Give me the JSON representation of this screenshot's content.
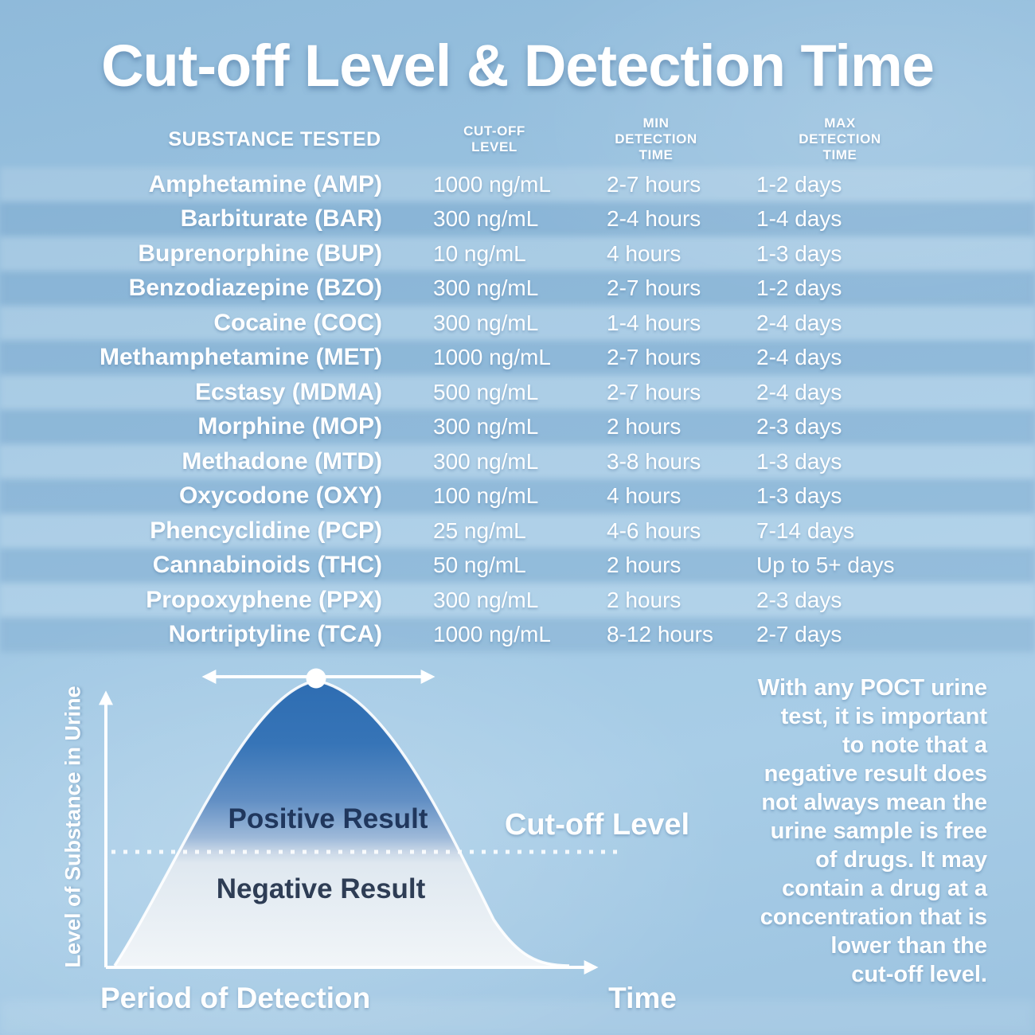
{
  "title": "Cut-off Level & Detection Time",
  "colors": {
    "background_blue": "#9dc5e2",
    "stripe_dark": "#5c8bb8",
    "curve_top_blue": "#2e6db2",
    "curve_bottom_light": "#f1f5f8",
    "text_white": "#ffffff",
    "region_label_dark": "#20375d"
  },
  "table": {
    "headers": [
      "SUBSTANCE TESTED",
      "CUT-OFF\nLEVEL",
      "MIN\nDETECTION\nTIME",
      "MAX\nDETECTION\nTIME"
    ],
    "rows": [
      {
        "substance": "Amphetamine (AMP)",
        "cutoff": "1000 ng/mL",
        "min": "2-7 hours",
        "max": "1-2 days"
      },
      {
        "substance": "Barbiturate (BAR)",
        "cutoff": "300 ng/mL",
        "min": "2-4 hours",
        "max": "1-4 days"
      },
      {
        "substance": "Buprenorphine (BUP)",
        "cutoff": "10 ng/mL",
        "min": "4 hours",
        "max": "1-3 days"
      },
      {
        "substance": "Benzodiazepine (BZO)",
        "cutoff": "300 ng/mL",
        "min": "2-7 hours",
        "max": "1-2 days"
      },
      {
        "substance": "Cocaine (COC)",
        "cutoff": "300 ng/mL",
        "min": "1-4 hours",
        "max": "2-4 days"
      },
      {
        "substance": "Methamphetamine (MET)",
        "cutoff": "1000 ng/mL",
        "min": "2-7 hours",
        "max": "2-4 days"
      },
      {
        "substance": "Ecstasy (MDMA)",
        "cutoff": "500 ng/mL",
        "min": "2-7 hours",
        "max": "2-4 days"
      },
      {
        "substance": "Morphine (MOP)",
        "cutoff": "300 ng/mL",
        "min": "2 hours",
        "max": "2-3 days"
      },
      {
        "substance": "Methadone (MTD)",
        "cutoff": "300 ng/mL",
        "min": "3-8 hours",
        "max": "1-3 days"
      },
      {
        "substance": "Oxycodone (OXY)",
        "cutoff": "100 ng/mL",
        "min": "4 hours",
        "max": "1-3 days"
      },
      {
        "substance": "Phencyclidine (PCP)",
        "cutoff": "25 ng/mL",
        "min": "4-6 hours",
        "max": "7-14 days"
      },
      {
        "substance": "Cannabinoids (THC)",
        "cutoff": "50 ng/mL",
        "min": "2 hours",
        "max": "Up to 5+ days"
      },
      {
        "substance": "Propoxyphene (PPX)",
        "cutoff": "300 ng/mL",
        "min": "2 hours",
        "max": "2-3 days"
      },
      {
        "substance": "Nortriptyline (TCA)",
        "cutoff": "1000 ng/mL",
        "min": "8-12 hours",
        "max": "2-7 days"
      }
    ]
  },
  "concept_chart": {
    "y_axis_label": "Level of Substance in Urine",
    "x_axis_label": "Period of Detection",
    "x_axis_end_label": "Time",
    "region_above_cutoff": "Positive Result",
    "region_below_cutoff": "Negative Result",
    "cutoff_line_label": "Cut-off Level"
  },
  "note": "With any POCT urine\ntest, it is important\nto note that a\nnegative result does\nnot always mean the\nurine sample is free\nof drugs. It may\ncontain a drug at a\nconcentration that is\nlower than the\ncut-off level."
}
